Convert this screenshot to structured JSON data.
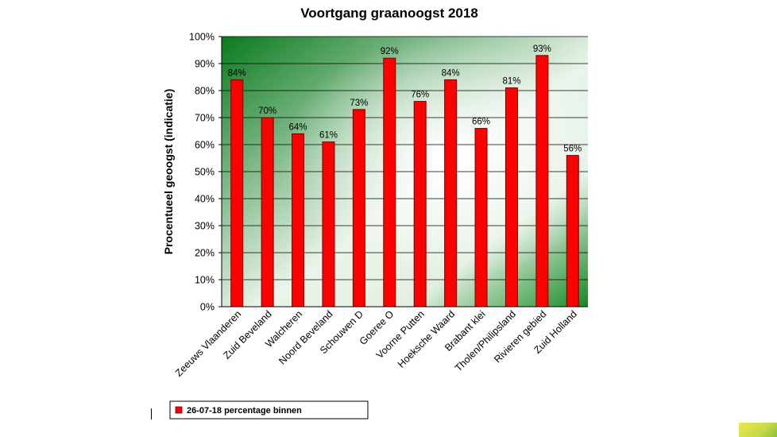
{
  "chart_data": {
    "type": "bar",
    "title": "Voortgang graanoogst 2018",
    "ylabel": "Procentueel geoogst (indicatie)",
    "xlabel": "",
    "ylim": [
      0,
      100
    ],
    "yticks": [
      "0%",
      "10%",
      "20%",
      "30%",
      "40%",
      "50%",
      "60%",
      "70%",
      "80%",
      "90%",
      "100%"
    ],
    "grid": true,
    "legend_position": "bottom-left",
    "categories": [
      "Zeeuws Vlaanderen",
      "Zuid Beveland",
      "Walcheren",
      "Noord Beveland",
      "Schouwen D",
      "Goeree O",
      "Voorne Putten",
      "Hoeksche Waard",
      "Brabant klei",
      "Tholen/Philipsland",
      "Rivieren gebied",
      "Zuid Holland"
    ],
    "series": [
      {
        "name": "26-07-18 percentage binnen",
        "color": "#ff0000",
        "values": [
          84,
          70,
          64,
          61,
          73,
          92,
          76,
          84,
          66,
          81,
          93,
          56
        ],
        "labels": [
          "84%",
          "70%",
          "64%",
          "61%",
          "73%",
          "92%",
          "76%",
          "84%",
          "66%",
          "81%",
          "93%",
          "56%"
        ]
      }
    ],
    "plot_background": {
      "from": "#0a7a1e",
      "to": "#ffffff"
    }
  }
}
